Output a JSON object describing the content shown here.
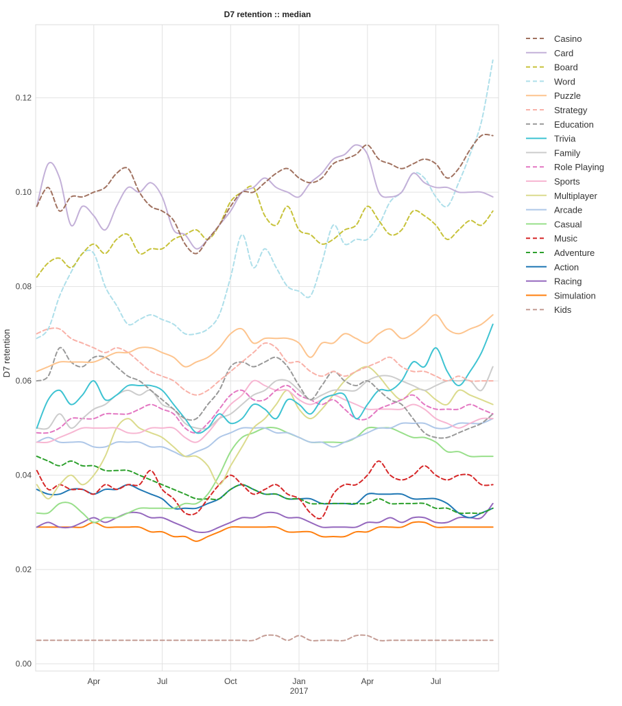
{
  "chart_data": {
    "type": "line",
    "title": "D7 retention :: median",
    "xlabel": "",
    "ylabel": "D7 retention",
    "x_ticks": [
      {
        "x": 3.0,
        "label": "Apr"
      },
      {
        "x": 6.0,
        "label": "Jul"
      },
      {
        "x": 9.0,
        "label": "Oct"
      },
      {
        "x": 12.0,
        "label": "Jan"
      },
      {
        "x": 15.0,
        "label": "Apr"
      },
      {
        "x": 18.0,
        "label": "Jul"
      }
    ],
    "x_sublabel": {
      "x": 12.0,
      "label": "2017"
    },
    "y_ticks": [
      0.0,
      0.02,
      0.04,
      0.06,
      0.08,
      0.1,
      0.12
    ],
    "y_tick_labels": [
      "0.00",
      "0.02",
      "0.04",
      "0.06",
      "0.08",
      "0.10",
      "0.12"
    ],
    "xlim": [
      0.45,
      20.75
    ],
    "ylim": [
      -0.0015,
      0.1355
    ],
    "grid": true,
    "legend_position": "right",
    "x": [
      0.5,
      1.0,
      1.5,
      2.0,
      2.5,
      3.0,
      3.5,
      4.0,
      4.5,
      5.0,
      5.5,
      6.0,
      6.5,
      7.0,
      7.5,
      8.0,
      8.5,
      9.0,
      9.5,
      10.0,
      10.5,
      11.0,
      11.5,
      12.0,
      12.5,
      13.0,
      13.5,
      14.0,
      14.5,
      15.0,
      15.5,
      16.0,
      16.5,
      17.0,
      17.5,
      18.0,
      18.5,
      19.0,
      19.5,
      20.0,
      20.5
    ],
    "series": [
      {
        "name": "Casino",
        "color": "#a0715f",
        "dashed": true,
        "values": [
          0.097,
          0.101,
          0.096,
          0.099,
          0.099,
          0.1,
          0.101,
          0.104,
          0.105,
          0.1,
          0.097,
          0.096,
          0.094,
          0.089,
          0.087,
          0.09,
          0.093,
          0.097,
          0.1,
          0.1,
          0.102,
          0.104,
          0.105,
          0.103,
          0.102,
          0.103,
          0.106,
          0.107,
          0.108,
          0.11,
          0.107,
          0.106,
          0.105,
          0.106,
          0.107,
          0.106,
          0.103,
          0.105,
          0.109,
          0.112,
          0.112
        ]
      },
      {
        "name": "Card",
        "color": "#c3b0d8",
        "dashed": false,
        "values": [
          0.097,
          0.106,
          0.103,
          0.093,
          0.097,
          0.095,
          0.092,
          0.097,
          0.101,
          0.1,
          0.102,
          0.099,
          0.092,
          0.091,
          0.088,
          0.09,
          0.093,
          0.096,
          0.1,
          0.101,
          0.103,
          0.101,
          0.1,
          0.099,
          0.102,
          0.104,
          0.107,
          0.108,
          0.11,
          0.108,
          0.1,
          0.099,
          0.1,
          0.104,
          0.102,
          0.101,
          0.101,
          0.1,
          0.1,
          0.1,
          0.099
        ]
      },
      {
        "name": "Board",
        "color": "#c7c23a",
        "dashed": true,
        "values": [
          0.082,
          0.085,
          0.086,
          0.084,
          0.087,
          0.089,
          0.087,
          0.09,
          0.091,
          0.087,
          0.088,
          0.088,
          0.09,
          0.091,
          0.092,
          0.09,
          0.093,
          0.098,
          0.1,
          0.101,
          0.095,
          0.093,
          0.097,
          0.092,
          0.091,
          0.089,
          0.09,
          0.092,
          0.093,
          0.097,
          0.094,
          0.091,
          0.092,
          0.096,
          0.095,
          0.093,
          0.09,
          0.092,
          0.094,
          0.093,
          0.096
        ]
      },
      {
        "name": "Word",
        "color": "#aedfea",
        "dashed": true,
        "values": [
          0.069,
          0.071,
          0.078,
          0.083,
          0.087,
          0.087,
          0.08,
          0.076,
          0.072,
          0.073,
          0.074,
          0.073,
          0.072,
          0.07,
          0.07,
          0.071,
          0.074,
          0.082,
          0.091,
          0.084,
          0.088,
          0.084,
          0.08,
          0.079,
          0.078,
          0.085,
          0.093,
          0.089,
          0.09,
          0.09,
          0.093,
          0.098,
          0.1,
          0.104,
          0.103,
          0.099,
          0.097,
          0.102,
          0.108,
          0.115,
          0.128
        ]
      },
      {
        "name": "Puzzle",
        "color": "#fdc48e",
        "dashed": false,
        "values": [
          0.062,
          0.063,
          0.064,
          0.064,
          0.064,
          0.064,
          0.065,
          0.066,
          0.066,
          0.067,
          0.067,
          0.066,
          0.065,
          0.063,
          0.064,
          0.065,
          0.067,
          0.07,
          0.071,
          0.068,
          0.069,
          0.069,
          0.069,
          0.068,
          0.065,
          0.068,
          0.068,
          0.07,
          0.069,
          0.068,
          0.07,
          0.071,
          0.069,
          0.07,
          0.072,
          0.074,
          0.071,
          0.07,
          0.071,
          0.072,
          0.074
        ]
      },
      {
        "name": "Strategy",
        "color": "#f9b1a8",
        "dashed": true,
        "values": [
          0.07,
          0.071,
          0.071,
          0.069,
          0.068,
          0.067,
          0.066,
          0.067,
          0.066,
          0.064,
          0.062,
          0.061,
          0.06,
          0.058,
          0.057,
          0.058,
          0.06,
          0.062,
          0.064,
          0.066,
          0.068,
          0.067,
          0.064,
          0.064,
          0.062,
          0.061,
          0.062,
          0.061,
          0.062,
          0.063,
          0.064,
          0.065,
          0.063,
          0.062,
          0.062,
          0.061,
          0.06,
          0.061,
          0.06,
          0.06,
          0.06
        ]
      },
      {
        "name": "Education",
        "color": "#999999",
        "dashed": true,
        "values": [
          0.06,
          0.061,
          0.067,
          0.064,
          0.063,
          0.065,
          0.065,
          0.063,
          0.061,
          0.06,
          0.058,
          0.056,
          0.054,
          0.052,
          0.052,
          0.055,
          0.058,
          0.063,
          0.064,
          0.063,
          0.064,
          0.065,
          0.063,
          0.059,
          0.056,
          0.059,
          0.062,
          0.06,
          0.059,
          0.06,
          0.058,
          0.056,
          0.055,
          0.052,
          0.049,
          0.048,
          0.048,
          0.049,
          0.05,
          0.051,
          0.053
        ]
      },
      {
        "name": "Trivia",
        "color": "#3ec3d2",
        "dashed": false,
        "values": [
          0.05,
          0.056,
          0.058,
          0.055,
          0.057,
          0.06,
          0.056,
          0.057,
          0.059,
          0.059,
          0.059,
          0.058,
          0.055,
          0.052,
          0.049,
          0.05,
          0.053,
          0.051,
          0.052,
          0.055,
          0.054,
          0.052,
          0.056,
          0.055,
          0.053,
          0.056,
          0.057,
          0.057,
          0.052,
          0.055,
          0.058,
          0.058,
          0.06,
          0.064,
          0.063,
          0.067,
          0.062,
          0.059,
          0.062,
          0.066,
          0.072
        ]
      },
      {
        "name": "Family",
        "color": "#cccccc",
        "dashed": false,
        "values": [
          0.05,
          0.05,
          0.053,
          0.05,
          0.052,
          0.054,
          0.055,
          0.057,
          0.058,
          0.057,
          0.058,
          0.055,
          0.054,
          0.051,
          0.05,
          0.05,
          0.052,
          0.053,
          0.055,
          0.057,
          0.058,
          0.06,
          0.06,
          0.058,
          0.056,
          0.057,
          0.058,
          0.058,
          0.058,
          0.06,
          0.061,
          0.061,
          0.06,
          0.059,
          0.058,
          0.059,
          0.06,
          0.06,
          0.06,
          0.058,
          0.063
        ]
      },
      {
        "name": "Role Playing",
        "color": "#e377c2",
        "dashed": true,
        "values": [
          0.049,
          0.049,
          0.05,
          0.052,
          0.052,
          0.052,
          0.053,
          0.053,
          0.053,
          0.054,
          0.055,
          0.054,
          0.053,
          0.05,
          0.049,
          0.051,
          0.054,
          0.057,
          0.058,
          0.056,
          0.056,
          0.058,
          0.059,
          0.057,
          0.056,
          0.055,
          0.056,
          0.054,
          0.052,
          0.052,
          0.054,
          0.055,
          0.056,
          0.057,
          0.055,
          0.054,
          0.054,
          0.054,
          0.055,
          0.054,
          0.053
        ]
      },
      {
        "name": "Sports",
        "color": "#f7b6d2",
        "dashed": false,
        "values": [
          0.047,
          0.047,
          0.048,
          0.049,
          0.05,
          0.05,
          0.05,
          0.05,
          0.049,
          0.049,
          0.05,
          0.05,
          0.05,
          0.048,
          0.047,
          0.049,
          0.052,
          0.055,
          0.057,
          0.06,
          0.059,
          0.058,
          0.058,
          0.056,
          0.055,
          0.056,
          0.057,
          0.056,
          0.055,
          0.054,
          0.054,
          0.054,
          0.054,
          0.055,
          0.054,
          0.052,
          0.051,
          0.05,
          0.051,
          0.052,
          0.052
        ]
      },
      {
        "name": "Multiplayer",
        "color": "#dbdb8d",
        "dashed": false,
        "values": [
          0.038,
          0.035,
          0.038,
          0.04,
          0.038,
          0.04,
          0.044,
          0.05,
          0.052,
          0.05,
          0.049,
          0.048,
          0.046,
          0.044,
          0.044,
          0.042,
          0.038,
          0.042,
          0.046,
          0.05,
          0.052,
          0.055,
          0.058,
          0.054,
          0.052,
          0.054,
          0.057,
          0.06,
          0.062,
          0.063,
          0.061,
          0.058,
          0.056,
          0.058,
          0.058,
          0.056,
          0.055,
          0.058,
          0.057,
          0.056,
          0.055
        ]
      },
      {
        "name": "Arcade",
        "color": "#aec7e8",
        "dashed": false,
        "values": [
          0.047,
          0.048,
          0.047,
          0.047,
          0.047,
          0.046,
          0.046,
          0.047,
          0.047,
          0.047,
          0.046,
          0.046,
          0.045,
          0.044,
          0.045,
          0.046,
          0.048,
          0.049,
          0.05,
          0.05,
          0.05,
          0.049,
          0.049,
          0.048,
          0.047,
          0.047,
          0.046,
          0.047,
          0.048,
          0.049,
          0.05,
          0.05,
          0.051,
          0.051,
          0.051,
          0.05,
          0.05,
          0.051,
          0.051,
          0.051,
          0.052
        ]
      },
      {
        "name": "Casual",
        "color": "#98df8a",
        "dashed": false,
        "values": [
          0.032,
          0.032,
          0.034,
          0.034,
          0.032,
          0.03,
          0.031,
          0.031,
          0.032,
          0.033,
          0.033,
          0.033,
          0.033,
          0.034,
          0.034,
          0.036,
          0.04,
          0.045,
          0.048,
          0.049,
          0.05,
          0.05,
          0.049,
          0.048,
          0.047,
          0.047,
          0.047,
          0.047,
          0.048,
          0.05,
          0.05,
          0.05,
          0.049,
          0.048,
          0.048,
          0.047,
          0.045,
          0.045,
          0.044,
          0.044,
          0.044
        ]
      },
      {
        "name": "Music",
        "color": "#d62728",
        "dashed": true,
        "values": [
          0.041,
          0.037,
          0.038,
          0.037,
          0.037,
          0.036,
          0.038,
          0.037,
          0.038,
          0.038,
          0.041,
          0.037,
          0.035,
          0.032,
          0.032,
          0.035,
          0.038,
          0.04,
          0.038,
          0.036,
          0.037,
          0.038,
          0.036,
          0.035,
          0.032,
          0.031,
          0.036,
          0.038,
          0.038,
          0.04,
          0.043,
          0.04,
          0.039,
          0.04,
          0.042,
          0.04,
          0.039,
          0.04,
          0.04,
          0.038,
          0.038
        ]
      },
      {
        "name": "Adventure",
        "color": "#2ca02c",
        "dashed": true,
        "values": [
          0.044,
          0.043,
          0.042,
          0.043,
          0.042,
          0.042,
          0.041,
          0.041,
          0.041,
          0.04,
          0.039,
          0.038,
          0.037,
          0.036,
          0.035,
          0.035,
          0.035,
          0.037,
          0.038,
          0.037,
          0.036,
          0.036,
          0.035,
          0.035,
          0.034,
          0.034,
          0.034,
          0.034,
          0.034,
          0.034,
          0.035,
          0.034,
          0.034,
          0.034,
          0.034,
          0.033,
          0.033,
          0.032,
          0.032,
          0.032,
          0.033
        ]
      },
      {
        "name": "Action",
        "color": "#1f77b4",
        "dashed": false,
        "values": [
          0.037,
          0.036,
          0.036,
          0.037,
          0.037,
          0.036,
          0.037,
          0.037,
          0.038,
          0.037,
          0.036,
          0.035,
          0.033,
          0.033,
          0.033,
          0.034,
          0.035,
          0.037,
          0.038,
          0.037,
          0.036,
          0.036,
          0.035,
          0.035,
          0.035,
          0.034,
          0.034,
          0.034,
          0.034,
          0.036,
          0.036,
          0.036,
          0.036,
          0.035,
          0.035,
          0.035,
          0.034,
          0.032,
          0.031,
          0.032,
          0.033
        ]
      },
      {
        "name": "Racing",
        "color": "#9467bd",
        "dashed": false,
        "values": [
          0.029,
          0.03,
          0.029,
          0.029,
          0.03,
          0.031,
          0.03,
          0.031,
          0.032,
          0.032,
          0.031,
          0.031,
          0.03,
          0.029,
          0.028,
          0.028,
          0.029,
          0.03,
          0.031,
          0.031,
          0.032,
          0.032,
          0.031,
          0.031,
          0.03,
          0.029,
          0.029,
          0.029,
          0.029,
          0.03,
          0.03,
          0.031,
          0.03,
          0.031,
          0.031,
          0.03,
          0.03,
          0.031,
          0.031,
          0.031,
          0.034
        ]
      },
      {
        "name": "Simulation",
        "color": "#ff7f0e",
        "dashed": false,
        "values": [
          0.029,
          0.029,
          0.029,
          0.029,
          0.029,
          0.03,
          0.029,
          0.029,
          0.029,
          0.029,
          0.028,
          0.028,
          0.027,
          0.027,
          0.026,
          0.027,
          0.028,
          0.029,
          0.029,
          0.029,
          0.029,
          0.029,
          0.028,
          0.028,
          0.028,
          0.027,
          0.027,
          0.027,
          0.028,
          0.028,
          0.029,
          0.029,
          0.029,
          0.03,
          0.03,
          0.029,
          0.029,
          0.029,
          0.029,
          0.029,
          0.029
        ]
      },
      {
        "name": "Kids",
        "color": "#c49c94",
        "dashed": true,
        "values": [
          0.005,
          0.005,
          0.005,
          0.005,
          0.005,
          0.005,
          0.005,
          0.005,
          0.005,
          0.005,
          0.005,
          0.005,
          0.005,
          0.005,
          0.005,
          0.005,
          0.005,
          0.005,
          0.005,
          0.005,
          0.006,
          0.006,
          0.005,
          0.006,
          0.005,
          0.005,
          0.005,
          0.005,
          0.006,
          0.006,
          0.005,
          0.005,
          0.005,
          0.005,
          0.005,
          0.005,
          0.005,
          0.005,
          0.005,
          0.005,
          0.005
        ]
      }
    ]
  }
}
